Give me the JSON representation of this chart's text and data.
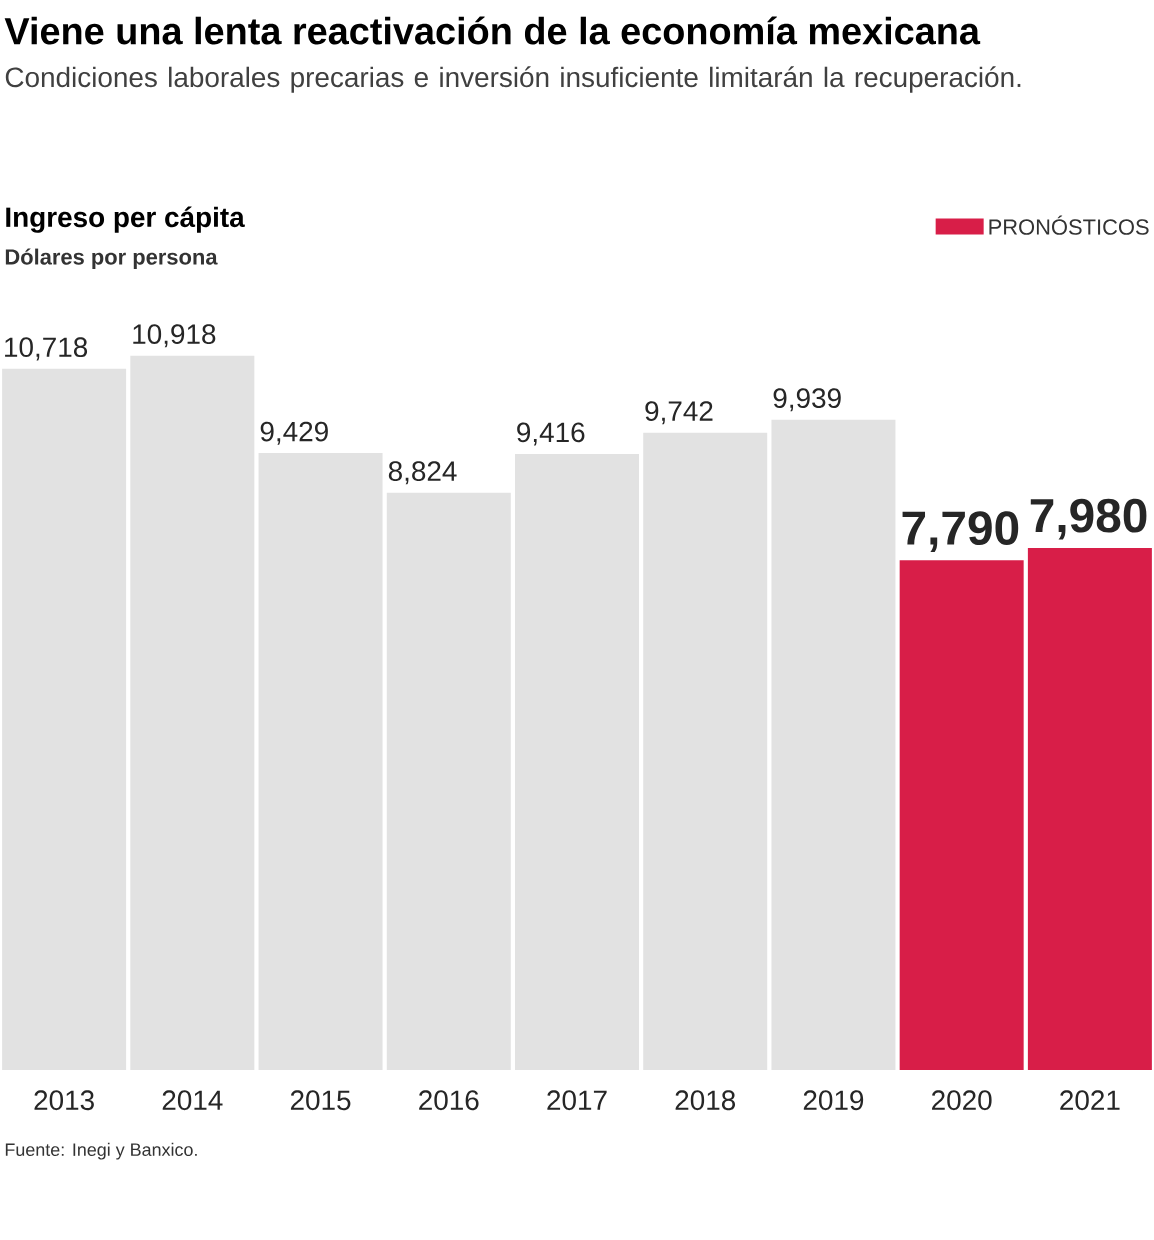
{
  "chart_data": {
    "type": "bar",
    "title": "Viene una lenta reactivación de la economía mexicana",
    "subtitle": "Condiciones laborales precarias e inversión insuficiente limitarán la recuperación.",
    "ylabel": "Dólares por persona",
    "annotations": [
      "Ingreso per cápita",
      "Fuente: Inegi y Banxico."
    ],
    "categories": [
      "2013",
      "2014",
      "2015",
      "2016",
      "2017",
      "2018",
      "2019",
      "2020",
      "2021"
    ],
    "data_labels": true,
    "legend": "top right",
    "series": [
      {
        "color": "#e2e2e2",
        "values": [
          10718,
          10918,
          9429,
          8824,
          9416,
          9742,
          9939,
          null,
          null
        ],
        "value_labels": [
          "10,718",
          "10,918",
          "9,429",
          "8,824",
          "9,416",
          "9,742",
          "9,939",
          null,
          null
        ]
      },
      {
        "name": "PRONÓSTICOS",
        "color": "#d81e48",
        "values": [
          null,
          null,
          null,
          null,
          null,
          null,
          null,
          7790,
          7980
        ],
        "value_labels": [
          null,
          null,
          null,
          null,
          null,
          null,
          null,
          "7,790",
          "7,980"
        ]
      }
    ]
  }
}
